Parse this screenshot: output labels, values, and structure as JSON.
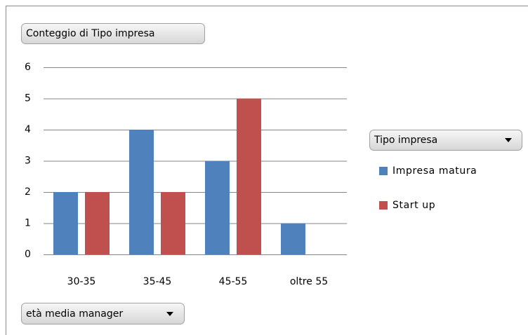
{
  "chart_data": {
    "type": "bar",
    "values_field": "Conteggio di Tipo impresa",
    "legend_title": "Tipo impresa",
    "axis_field": "età media manager",
    "categories": [
      "30-35",
      "35-45",
      "45-55",
      "oltre 55"
    ],
    "series": [
      {
        "name": "Impresa matura",
        "color": "#4f81bd",
        "values": [
          2,
          4,
          3,
          1
        ]
      },
      {
        "name": "Start up",
        "color": "#c0504d",
        "values": [
          2,
          2,
          5,
          null
        ]
      }
    ],
    "ylim": [
      0,
      6
    ],
    "yticks": [
      0,
      1,
      2,
      3,
      4,
      5,
      6
    ],
    "grid": true,
    "legend": "right"
  }
}
